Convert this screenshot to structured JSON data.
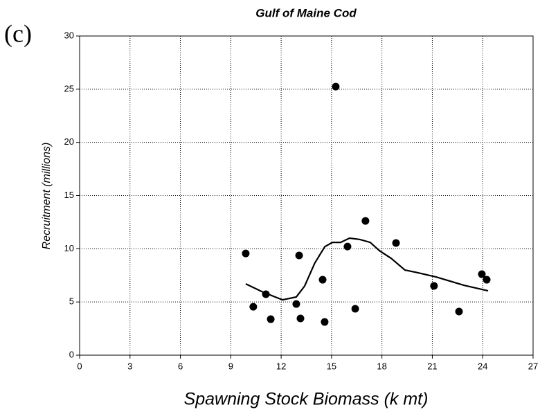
{
  "chart_data": {
    "type": "scatter",
    "title": "Gulf of Maine Cod",
    "panel_label": "(c)",
    "x_label": "Spawning Stock Biomass (k mt)",
    "y_label": "Recruitment (millions)",
    "xlim": [
      0,
      27
    ],
    "xticks": [
      0,
      3,
      6,
      9,
      12,
      15,
      18,
      21,
      24,
      27
    ],
    "ylim": [
      0,
      30
    ],
    "yticks": [
      0,
      5,
      10,
      15,
      20,
      25,
      30
    ],
    "grid": true,
    "series": [
      {
        "mode": "markers",
        "color": "#000000",
        "x": [
          9.89,
          10.34,
          11.09,
          11.38,
          13.07,
          12.9,
          13.15,
          14.47,
          14.59,
          15.25,
          15.95,
          16.41,
          17.02,
          18.84,
          21.1,
          22.59,
          23.95,
          24.24
        ],
        "values": [
          9.56,
          4.55,
          5.73,
          3.38,
          9.37,
          4.81,
          3.45,
          7.09,
          3.12,
          25.24,
          10.21,
          4.36,
          12.62,
          10.54,
          6.51,
          4.1,
          7.61,
          7.09
        ]
      },
      {
        "mode": "line",
        "color": "#000000",
        "x": [
          9.89,
          10.92,
          12.08,
          12.9,
          13.4,
          14.0,
          14.6,
          15.05,
          15.54,
          16.07,
          16.69,
          17.3,
          17.85,
          18.55,
          19.37,
          20.0,
          21.23,
          22.88,
          24.32
        ],
        "values": [
          6.7,
          5.92,
          5.2,
          5.47,
          6.5,
          8.65,
          10.2,
          10.6,
          10.6,
          11.0,
          10.87,
          10.6,
          9.82,
          9.1,
          8.0,
          7.8,
          7.35,
          6.57,
          6.05
        ]
      }
    ]
  }
}
